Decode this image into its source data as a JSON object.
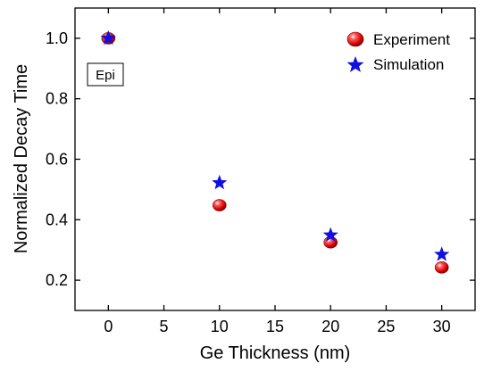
{
  "chart_data": {
    "type": "scatter",
    "xlabel": "Ge Thickness (nm)",
    "ylabel": "Normalized Decay Time",
    "xlim": [
      -3,
      33
    ],
    "ylim": [
      0.1,
      1.1
    ],
    "x_ticks": [
      0,
      5,
      10,
      15,
      20,
      25,
      30
    ],
    "y_ticks": [
      0.2,
      0.4,
      0.6,
      0.8,
      1.0
    ],
    "x_tick_labels": [
      "0",
      "5",
      "10",
      "15",
      "20",
      "25",
      "30"
    ],
    "y_tick_labels": [
      "0.2",
      "0.4",
      "0.6",
      "0.8",
      "1.0"
    ],
    "grid": false,
    "legend_position": "top-right",
    "series": [
      {
        "name": "Experiment",
        "marker": "sphere",
        "color": "#e01010",
        "x": [
          0,
          10,
          20,
          30
        ],
        "y": [
          1.0,
          0.448,
          0.325,
          0.242
        ]
      },
      {
        "name": "Simulation",
        "marker": "star",
        "color": "#1010e0",
        "x": [
          0,
          10,
          20,
          30
        ],
        "y": [
          1.0,
          0.522,
          0.349,
          0.285
        ]
      }
    ],
    "annotations": [
      {
        "text": "Epi",
        "x": 0,
        "y": 0.875,
        "boxed": true
      }
    ]
  }
}
